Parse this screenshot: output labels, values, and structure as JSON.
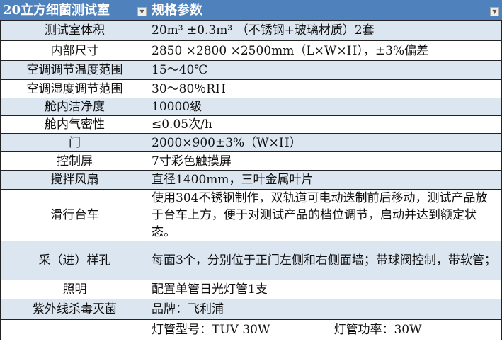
{
  "header": {
    "col1": "20立方细菌测试室",
    "col2": "规格参数"
  },
  "rows": [
    {
      "k": "测试室体积",
      "v": "20m³ ±0.3m³ （不锈钢+玻璃材质）2套"
    },
    {
      "k": "内部尺寸",
      "v": "2850 ×2800 ×2500mm（L×W×H），±3%偏差"
    },
    {
      "k": "空调调节温度范围",
      "v": "15～40℃"
    },
    {
      "k": "空调湿度调节范围",
      "v": "30～80％RH"
    },
    {
      "k": "舱内洁净度",
      "v": "10000级"
    },
    {
      "k": "舱内气密性",
      "v": "≤0.05次/h"
    },
    {
      "k": "门",
      "v": "2000×900±3%（W×H）"
    },
    {
      "k": "控制屏",
      "v": "7寸彩色触摸屏"
    },
    {
      "k": "搅拌风扇",
      "v": "直径1400mm，三叶金属叶片"
    },
    {
      "k": "滑行台车",
      "v": "使用304不锈钢制作，双轨道可电动迭制前后移动，测试产品放于台车上方，便于对测试产品的档位调节，启动并达到额定状态。"
    },
    {
      "k": "采（进）样孔",
      "v": "每面3个，分别位于正门左侧和右侧面墙；带球阀控制，带软管；"
    },
    {
      "k": "照明",
      "v": "配置单管日光灯管1支"
    },
    {
      "k": "紫外线杀毒灭菌",
      "v": "品牌：飞利浦"
    },
    {
      "k": "",
      "v": "灯管型号：TUV 30W",
      "v2": "灯管功率：30W"
    }
  ]
}
